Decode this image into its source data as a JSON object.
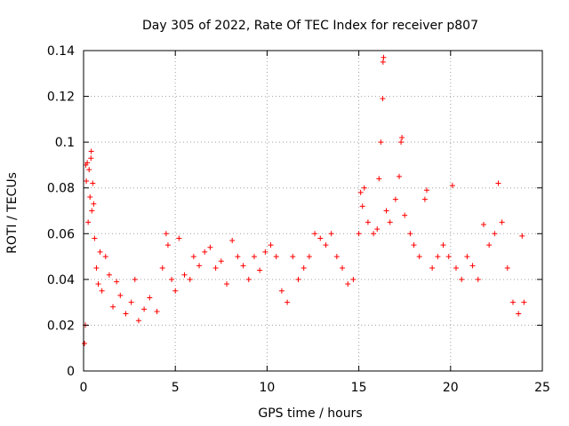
{
  "chart_data": {
    "type": "scatter",
    "title": "Day 305 of 2022, Rate Of TEC Index for receiver p807",
    "xlabel": "GPS time / hours",
    "ylabel": "ROTI / TECUs",
    "xlim": [
      0,
      25
    ],
    "ylim": [
      0,
      0.14
    ],
    "x_ticks": [
      0,
      5,
      10,
      15,
      20,
      25
    ],
    "x_tick_labels": [
      "0",
      "5",
      "10",
      "15",
      "20",
      "25"
    ],
    "y_ticks": [
      0,
      0.02,
      0.04,
      0.06,
      0.08,
      0.1,
      0.12,
      0.14
    ],
    "y_tick_labels": [
      "0",
      "0.02",
      "0.04",
      "0.06",
      "0.08",
      "0.1",
      "0.12",
      "0.14"
    ],
    "grid": true,
    "marker": "+",
    "color": "#ff0000",
    "series": [
      {
        "points": [
          [
            0.05,
            0.012
          ],
          [
            0.1,
            0.02
          ],
          [
            0.12,
            0.09
          ],
          [
            0.15,
            0.083
          ],
          [
            0.2,
            0.091
          ],
          [
            0.25,
            0.065
          ],
          [
            0.3,
            0.088
          ],
          [
            0.35,
            0.076
          ],
          [
            0.4,
            0.093
          ],
          [
            0.42,
            0.096
          ],
          [
            0.45,
            0.07
          ],
          [
            0.5,
            0.082
          ],
          [
            0.55,
            0.073
          ],
          [
            0.6,
            0.058
          ],
          [
            0.7,
            0.045
          ],
          [
            0.8,
            0.038
          ],
          [
            0.9,
            0.052
          ],
          [
            1.0,
            0.035
          ],
          [
            1.2,
            0.05
          ],
          [
            1.4,
            0.042
          ],
          [
            1.6,
            0.028
          ],
          [
            1.8,
            0.039
          ],
          [
            2.0,
            0.033
          ],
          [
            2.3,
            0.025
          ],
          [
            2.6,
            0.03
          ],
          [
            2.8,
            0.04
          ],
          [
            3.0,
            0.022
          ],
          [
            3.3,
            0.027
          ],
          [
            3.6,
            0.032
          ],
          [
            4.0,
            0.026
          ],
          [
            4.3,
            0.045
          ],
          [
            4.5,
            0.06
          ],
          [
            4.6,
            0.055
          ],
          [
            4.8,
            0.04
          ],
          [
            5.0,
            0.035
          ],
          [
            5.2,
            0.058
          ],
          [
            5.5,
            0.042
          ],
          [
            5.8,
            0.04
          ],
          [
            6.0,
            0.05
          ],
          [
            6.3,
            0.046
          ],
          [
            6.6,
            0.052
          ],
          [
            6.9,
            0.054
          ],
          [
            7.2,
            0.045
          ],
          [
            7.5,
            0.048
          ],
          [
            7.8,
            0.038
          ],
          [
            8.1,
            0.057
          ],
          [
            8.4,
            0.05
          ],
          [
            8.7,
            0.046
          ],
          [
            9.0,
            0.04
          ],
          [
            9.3,
            0.05
          ],
          [
            9.6,
            0.044
          ],
          [
            9.9,
            0.052
          ],
          [
            10.2,
            0.055
          ],
          [
            10.5,
            0.05
          ],
          [
            10.8,
            0.035
          ],
          [
            11.1,
            0.03
          ],
          [
            11.4,
            0.05
          ],
          [
            11.7,
            0.04
          ],
          [
            12.0,
            0.045
          ],
          [
            12.3,
            0.05
          ],
          [
            12.6,
            0.06
          ],
          [
            12.9,
            0.058
          ],
          [
            13.2,
            0.055
          ],
          [
            13.5,
            0.06
          ],
          [
            13.8,
            0.05
          ],
          [
            14.1,
            0.045
          ],
          [
            14.4,
            0.038
          ],
          [
            14.7,
            0.04
          ],
          [
            15.0,
            0.06
          ],
          [
            15.1,
            0.078
          ],
          [
            15.2,
            0.072
          ],
          [
            15.3,
            0.08
          ],
          [
            15.5,
            0.065
          ],
          [
            15.8,
            0.06
          ],
          [
            16.0,
            0.062
          ],
          [
            16.1,
            0.084
          ],
          [
            16.2,
            0.1
          ],
          [
            16.3,
            0.119
          ],
          [
            16.32,
            0.135
          ],
          [
            16.35,
            0.137
          ],
          [
            16.5,
            0.07
          ],
          [
            16.7,
            0.065
          ],
          [
            17.0,
            0.075
          ],
          [
            17.2,
            0.085
          ],
          [
            17.3,
            0.1
          ],
          [
            17.35,
            0.102
          ],
          [
            17.5,
            0.068
          ],
          [
            17.8,
            0.06
          ],
          [
            18.0,
            0.055
          ],
          [
            18.3,
            0.05
          ],
          [
            18.6,
            0.075
          ],
          [
            18.7,
            0.079
          ],
          [
            19.0,
            0.045
          ],
          [
            19.3,
            0.05
          ],
          [
            19.6,
            0.055
          ],
          [
            19.9,
            0.05
          ],
          [
            20.1,
            0.081
          ],
          [
            20.3,
            0.045
          ],
          [
            20.6,
            0.04
          ],
          [
            20.9,
            0.05
          ],
          [
            21.2,
            0.046
          ],
          [
            21.5,
            0.04
          ],
          [
            21.8,
            0.064
          ],
          [
            22.1,
            0.055
          ],
          [
            22.4,
            0.06
          ],
          [
            22.6,
            0.082
          ],
          [
            22.8,
            0.065
          ],
          [
            23.1,
            0.045
          ],
          [
            23.4,
            0.03
          ],
          [
            23.7,
            0.025
          ],
          [
            23.9,
            0.059
          ],
          [
            24.0,
            0.03
          ]
        ]
      }
    ]
  }
}
